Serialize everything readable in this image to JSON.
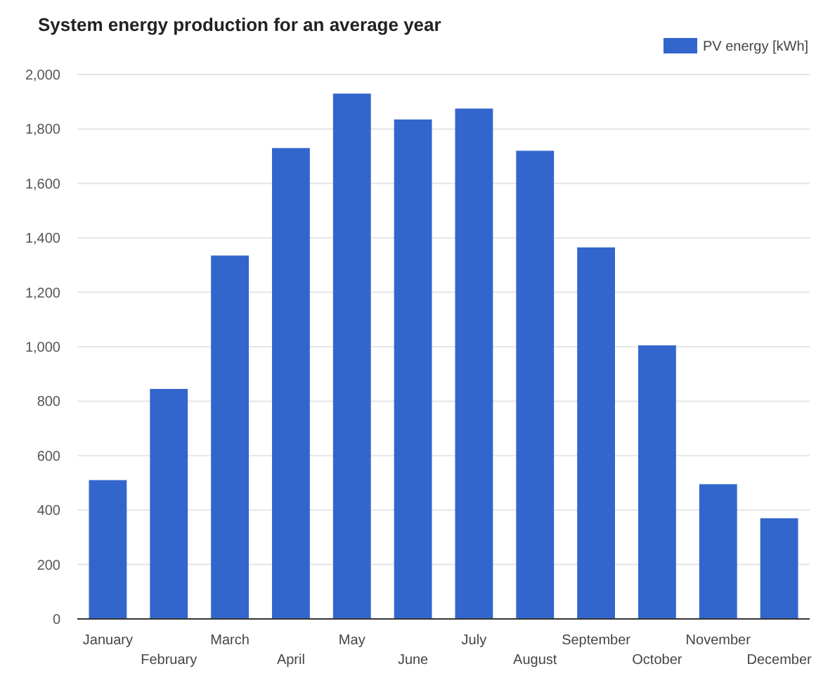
{
  "chart_data": {
    "type": "bar",
    "title": "System energy production for an average year",
    "categories": [
      "January",
      "February",
      "March",
      "April",
      "May",
      "June",
      "July",
      "August",
      "September",
      "October",
      "November",
      "December"
    ],
    "series": [
      {
        "name": "PV energy [kWh]",
        "color": "#3366cc",
        "values": [
          510,
          845,
          1335,
          1730,
          1930,
          1835,
          1875,
          1720,
          1365,
          1005,
          495,
          370
        ]
      }
    ],
    "ylim": [
      0,
      2000
    ],
    "yticks": [
      {
        "value": 0,
        "label": "0"
      },
      {
        "value": 200,
        "label": "200"
      },
      {
        "value": 400,
        "label": "400"
      },
      {
        "value": 600,
        "label": "600"
      },
      {
        "value": 800,
        "label": "800"
      },
      {
        "value": 1000,
        "label": "1,000"
      },
      {
        "value": 1200,
        "label": "1,200"
      },
      {
        "value": 1400,
        "label": "1,400"
      },
      {
        "value": 1600,
        "label": "1,600"
      },
      {
        "value": 1800,
        "label": "1,800"
      },
      {
        "value": 2000,
        "label": "2,000"
      }
    ],
    "grid": "y",
    "legend": "top right"
  }
}
